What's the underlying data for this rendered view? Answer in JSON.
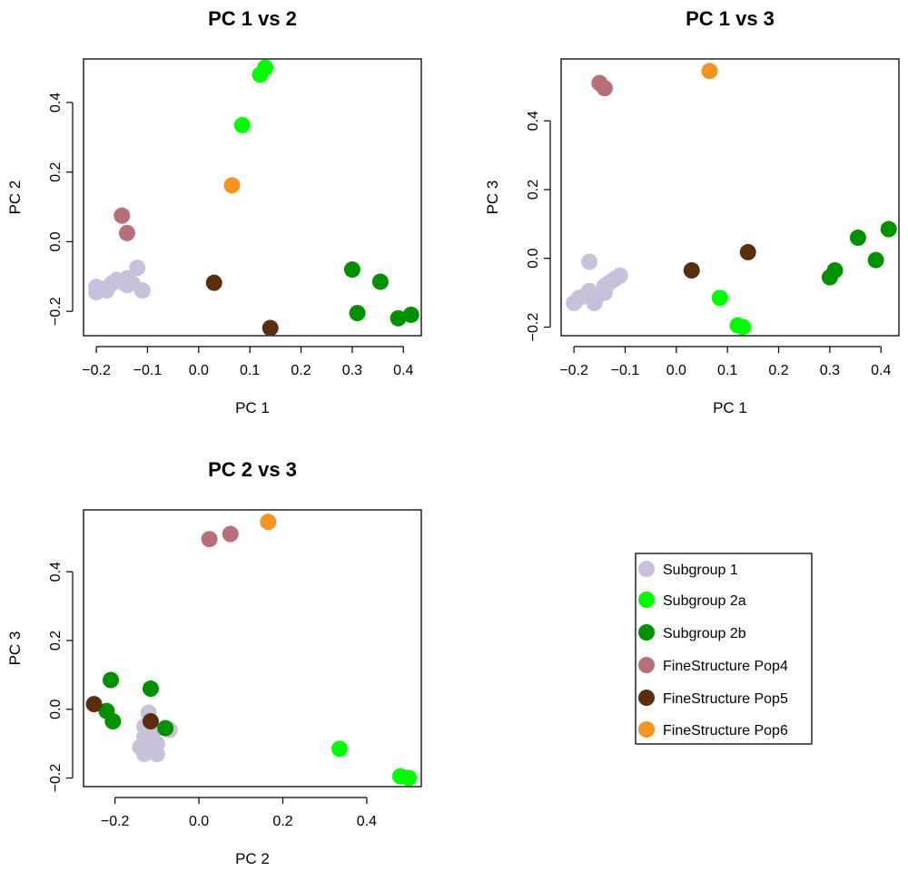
{
  "legend": {
    "items": [
      {
        "label": "Subgroup 1",
        "color": "#c9c0dc"
      },
      {
        "label": "Subgroup 2a",
        "color": "#00ff00"
      },
      {
        "label": "Subgroup 2b",
        "color": "#009000"
      },
      {
        "label": "FineStructure Pop4",
        "color": "#b87078"
      },
      {
        "label": "FineStructure Pop5",
        "color": "#5a2d0c"
      },
      {
        "label": "FineStructure Pop6",
        "color": "#f7941d"
      }
    ]
  },
  "chart_data": [
    {
      "type": "scatter",
      "title": "PC 1 vs 2",
      "xlabel": "PC 1",
      "ylabel": "PC 2",
      "xlim": [
        -0.225,
        0.435
      ],
      "ylim": [
        -0.27,
        0.525
      ],
      "xticks": [
        "−0.2",
        "−0.1",
        "0.0",
        "0.1",
        "0.2",
        "0.3",
        "0.4"
      ],
      "xtick_values": [
        -0.2,
        -0.1,
        0.0,
        0.1,
        0.2,
        0.3,
        0.4
      ],
      "yticks": [
        "−0.2",
        "0.0",
        "0.2",
        "0.4"
      ],
      "ytick_values": [
        -0.2,
        0.0,
        0.2,
        0.4
      ],
      "series": [
        {
          "group": 0,
          "points": [
            [
              -0.2,
              -0.13
            ],
            [
              -0.2,
              -0.145
            ],
            [
              -0.19,
              -0.135
            ],
            [
              -0.18,
              -0.14
            ],
            [
              -0.17,
              -0.12
            ],
            [
              -0.16,
              -0.11
            ],
            [
              -0.15,
              -0.115
            ],
            [
              -0.14,
              -0.105
            ],
            [
              -0.13,
              -0.12
            ],
            [
              -0.12,
              -0.075
            ],
            [
              -0.11,
              -0.14
            ],
            [
              -0.14,
              -0.125
            ]
          ]
        },
        {
          "group": 1,
          "points": [
            [
              0.12,
              0.48
            ],
            [
              0.13,
              0.5
            ],
            [
              0.085,
              0.335
            ]
          ]
        },
        {
          "group": 2,
          "points": [
            [
              0.3,
              -0.08
            ],
            [
              0.31,
              -0.205
            ],
            [
              0.355,
              -0.115
            ],
            [
              0.39,
              -0.22
            ],
            [
              0.415,
              -0.21
            ]
          ]
        },
        {
          "group": 3,
          "points": [
            [
              -0.15,
              0.075
            ],
            [
              -0.14,
              0.025
            ]
          ]
        },
        {
          "group": 4,
          "points": [
            [
              0.03,
              -0.118
            ],
            [
              0.14,
              -0.248
            ]
          ]
        },
        {
          "group": 5,
          "points": [
            [
              0.065,
              0.162
            ]
          ]
        }
      ]
    },
    {
      "type": "scatter",
      "title": "PC 1 vs 3",
      "xlabel": "PC 1",
      "ylabel": "PC 3",
      "xlim": [
        -0.225,
        0.435
      ],
      "ylim": [
        -0.225,
        0.58
      ],
      "xticks": [
        "−0.2",
        "−0.1",
        "0.0",
        "0.1",
        "0.2",
        "0.3",
        "0.4"
      ],
      "xtick_values": [
        -0.2,
        -0.1,
        0.0,
        0.1,
        0.2,
        0.3,
        0.4
      ],
      "yticks": [
        "−0.2",
        "0.0",
        "0.2",
        "0.4"
      ],
      "ytick_values": [
        -0.2,
        0.0,
        0.2,
        0.4
      ],
      "series": [
        {
          "group": 0,
          "points": [
            [
              -0.2,
              -0.13
            ],
            [
              -0.19,
              -0.115
            ],
            [
              -0.18,
              -0.11
            ],
            [
              -0.17,
              -0.01
            ],
            [
              -0.17,
              -0.095
            ],
            [
              -0.16,
              -0.13
            ],
            [
              -0.15,
              -0.105
            ],
            [
              -0.14,
              -0.08
            ],
            [
              -0.13,
              -0.07
            ],
            [
              -0.12,
              -0.06
            ],
            [
              -0.11,
              -0.05
            ],
            [
              -0.14,
              -0.1
            ]
          ]
        },
        {
          "group": 1,
          "points": [
            [
              0.085,
              -0.115
            ],
            [
              0.12,
              -0.195
            ],
            [
              0.13,
              -0.2
            ]
          ]
        },
        {
          "group": 2,
          "points": [
            [
              0.3,
              -0.055
            ],
            [
              0.31,
              -0.035
            ],
            [
              0.355,
              0.06
            ],
            [
              0.39,
              -0.005
            ],
            [
              0.415,
              0.085
            ]
          ]
        },
        {
          "group": 3,
          "points": [
            [
              -0.15,
              0.51
            ],
            [
              -0.14,
              0.495
            ]
          ]
        },
        {
          "group": 4,
          "points": [
            [
              0.03,
              -0.035
            ],
            [
              0.14,
              0.018
            ]
          ]
        },
        {
          "group": 5,
          "points": [
            [
              0.065,
              0.545
            ]
          ]
        }
      ]
    },
    {
      "type": "scatter",
      "title": "PC 2 vs 3",
      "xlabel": "PC 2",
      "ylabel": "PC 3",
      "xlim": [
        -0.275,
        0.53
      ],
      "ylim": [
        -0.225,
        0.58
      ],
      "xticks": [
        "−0.2",
        "0.0",
        "0.2",
        "0.4"
      ],
      "xtick_values": [
        -0.2,
        0.0,
        0.2,
        0.4
      ],
      "yticks": [
        "−0.2",
        "0.0",
        "0.2",
        "0.4"
      ],
      "ytick_values": [
        -0.2,
        0.0,
        0.2,
        0.4
      ],
      "series": [
        {
          "group": 0,
          "points": [
            [
              -0.14,
              -0.11
            ],
            [
              -0.13,
              -0.13
            ],
            [
              -0.13,
              -0.05
            ],
            [
              -0.12,
              -0.01
            ],
            [
              -0.12,
              -0.09
            ],
            [
              -0.115,
              -0.11
            ],
            [
              -0.11,
              -0.12
            ],
            [
              -0.1,
              -0.1
            ],
            [
              -0.1,
              -0.13
            ],
            [
              -0.07,
              -0.06
            ],
            [
              -0.13,
              -0.08
            ],
            [
              -0.11,
              -0.07
            ]
          ]
        },
        {
          "group": 1,
          "points": [
            [
              0.335,
              -0.115
            ],
            [
              0.48,
              -0.195
            ],
            [
              0.5,
              -0.2
            ]
          ]
        },
        {
          "group": 2,
          "points": [
            [
              -0.21,
              0.085
            ],
            [
              -0.115,
              0.06
            ],
            [
              -0.22,
              -0.005
            ],
            [
              -0.205,
              -0.035
            ],
            [
              -0.08,
              -0.055
            ]
          ]
        },
        {
          "group": 3,
          "points": [
            [
              0.025,
              0.495
            ],
            [
              0.075,
              0.51
            ]
          ]
        },
        {
          "group": 4,
          "points": [
            [
              -0.25,
              0.015
            ],
            [
              -0.115,
              -0.035
            ]
          ]
        },
        {
          "group": 5,
          "points": [
            [
              0.165,
              0.545
            ]
          ]
        }
      ]
    }
  ]
}
